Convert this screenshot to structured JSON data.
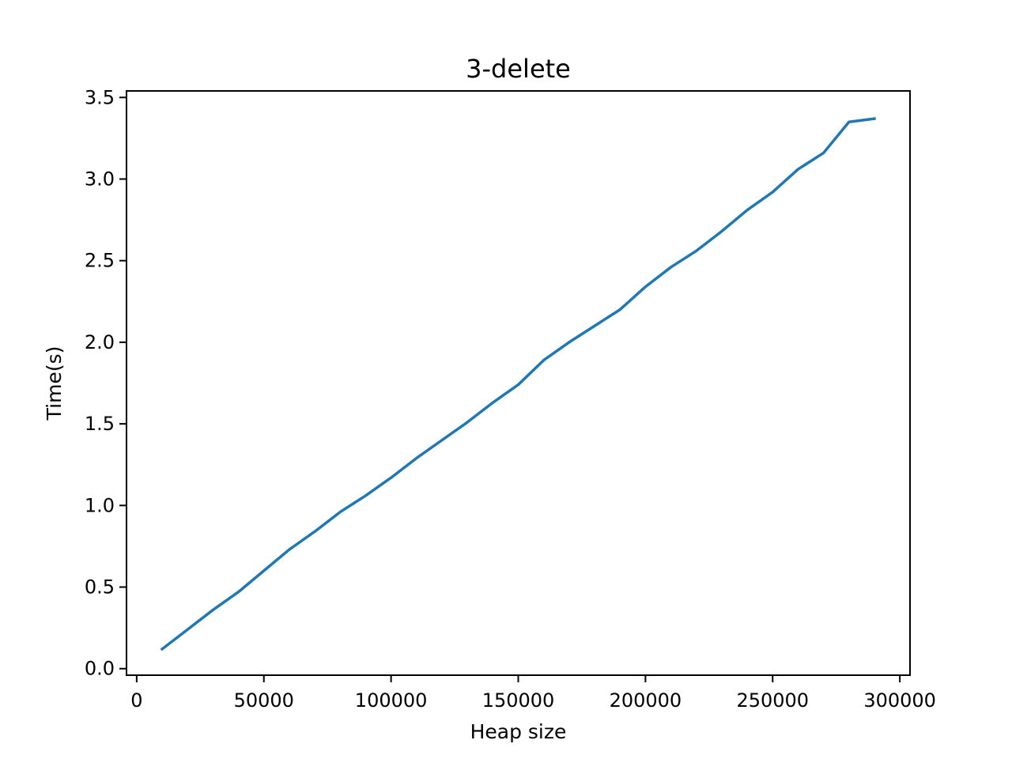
{
  "chart_data": {
    "type": "line",
    "title": "3-delete",
    "xlabel": "Heap size",
    "ylabel": "Time(s)",
    "xlim": [
      -4000,
      304000
    ],
    "ylim": [
      -0.04,
      3.54
    ],
    "xticks": [
      0,
      50000,
      100000,
      150000,
      200000,
      250000,
      300000
    ],
    "xtick_labels": [
      "0",
      "50000",
      "100000",
      "150000",
      "200000",
      "250000",
      "300000"
    ],
    "yticks": [
      0.0,
      0.5,
      1.0,
      1.5,
      2.0,
      2.5,
      3.0,
      3.5
    ],
    "ytick_labels": [
      "0.0",
      "0.5",
      "1.0",
      "1.5",
      "2.0",
      "2.5",
      "3.0",
      "3.5"
    ],
    "grid": false,
    "legend": "none",
    "series": [
      {
        "color": "#1f77b4",
        "x": [
          10000,
          20000,
          30000,
          40000,
          50000,
          60000,
          70000,
          80000,
          90000,
          100000,
          110000,
          120000,
          130000,
          140000,
          150000,
          160000,
          170000,
          180000,
          190000,
          200000,
          210000,
          220000,
          230000,
          240000,
          250000,
          260000,
          270000,
          280000,
          290000
        ],
        "y": [
          0.12,
          0.24,
          0.36,
          0.47,
          0.6,
          0.73,
          0.84,
          0.96,
          1.06,
          1.17,
          1.29,
          1.4,
          1.51,
          1.63,
          1.74,
          1.89,
          2.0,
          2.1,
          2.2,
          2.34,
          2.46,
          2.56,
          2.68,
          2.81,
          2.92,
          3.06,
          3.16,
          3.35,
          3.37
        ]
      }
    ]
  }
}
